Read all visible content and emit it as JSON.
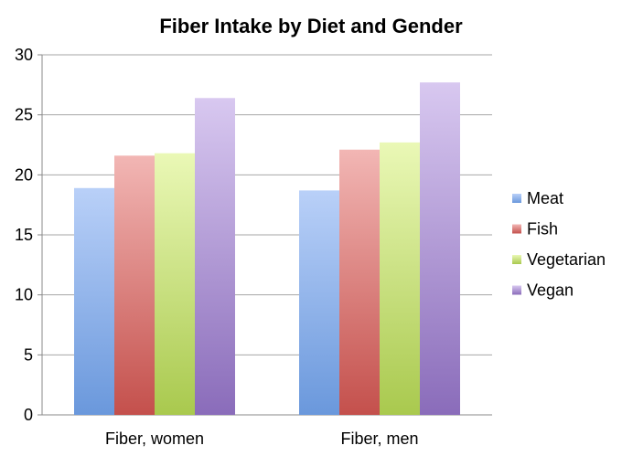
{
  "chart_data": {
    "type": "bar",
    "title": "Fiber Intake by Diet and Gender",
    "categories": [
      "Fiber, women",
      "Fiber, men"
    ],
    "series": [
      {
        "name": "Meat",
        "values": [
          18.9,
          18.7
        ],
        "color_top": "#b9d0f8",
        "color_bottom": "#6a98dc"
      },
      {
        "name": "Fish",
        "values": [
          21.6,
          22.1
        ],
        "color_top": "#f2b6b4",
        "color_bottom": "#c4504c"
      },
      {
        "name": "Vegetarian",
        "values": [
          21.8,
          22.7
        ],
        "color_top": "#eaf8b6",
        "color_bottom": "#a9c94e"
      },
      {
        "name": "Vegan",
        "values": [
          26.4,
          27.7
        ],
        "color_top": "#d8c8f0",
        "color_bottom": "#8a6cba"
      }
    ],
    "ylim": [
      0,
      30
    ],
    "yticks": [
      "0",
      "5",
      "10",
      "15",
      "20",
      "25",
      "30"
    ],
    "grid": true,
    "legend_position": "right"
  }
}
